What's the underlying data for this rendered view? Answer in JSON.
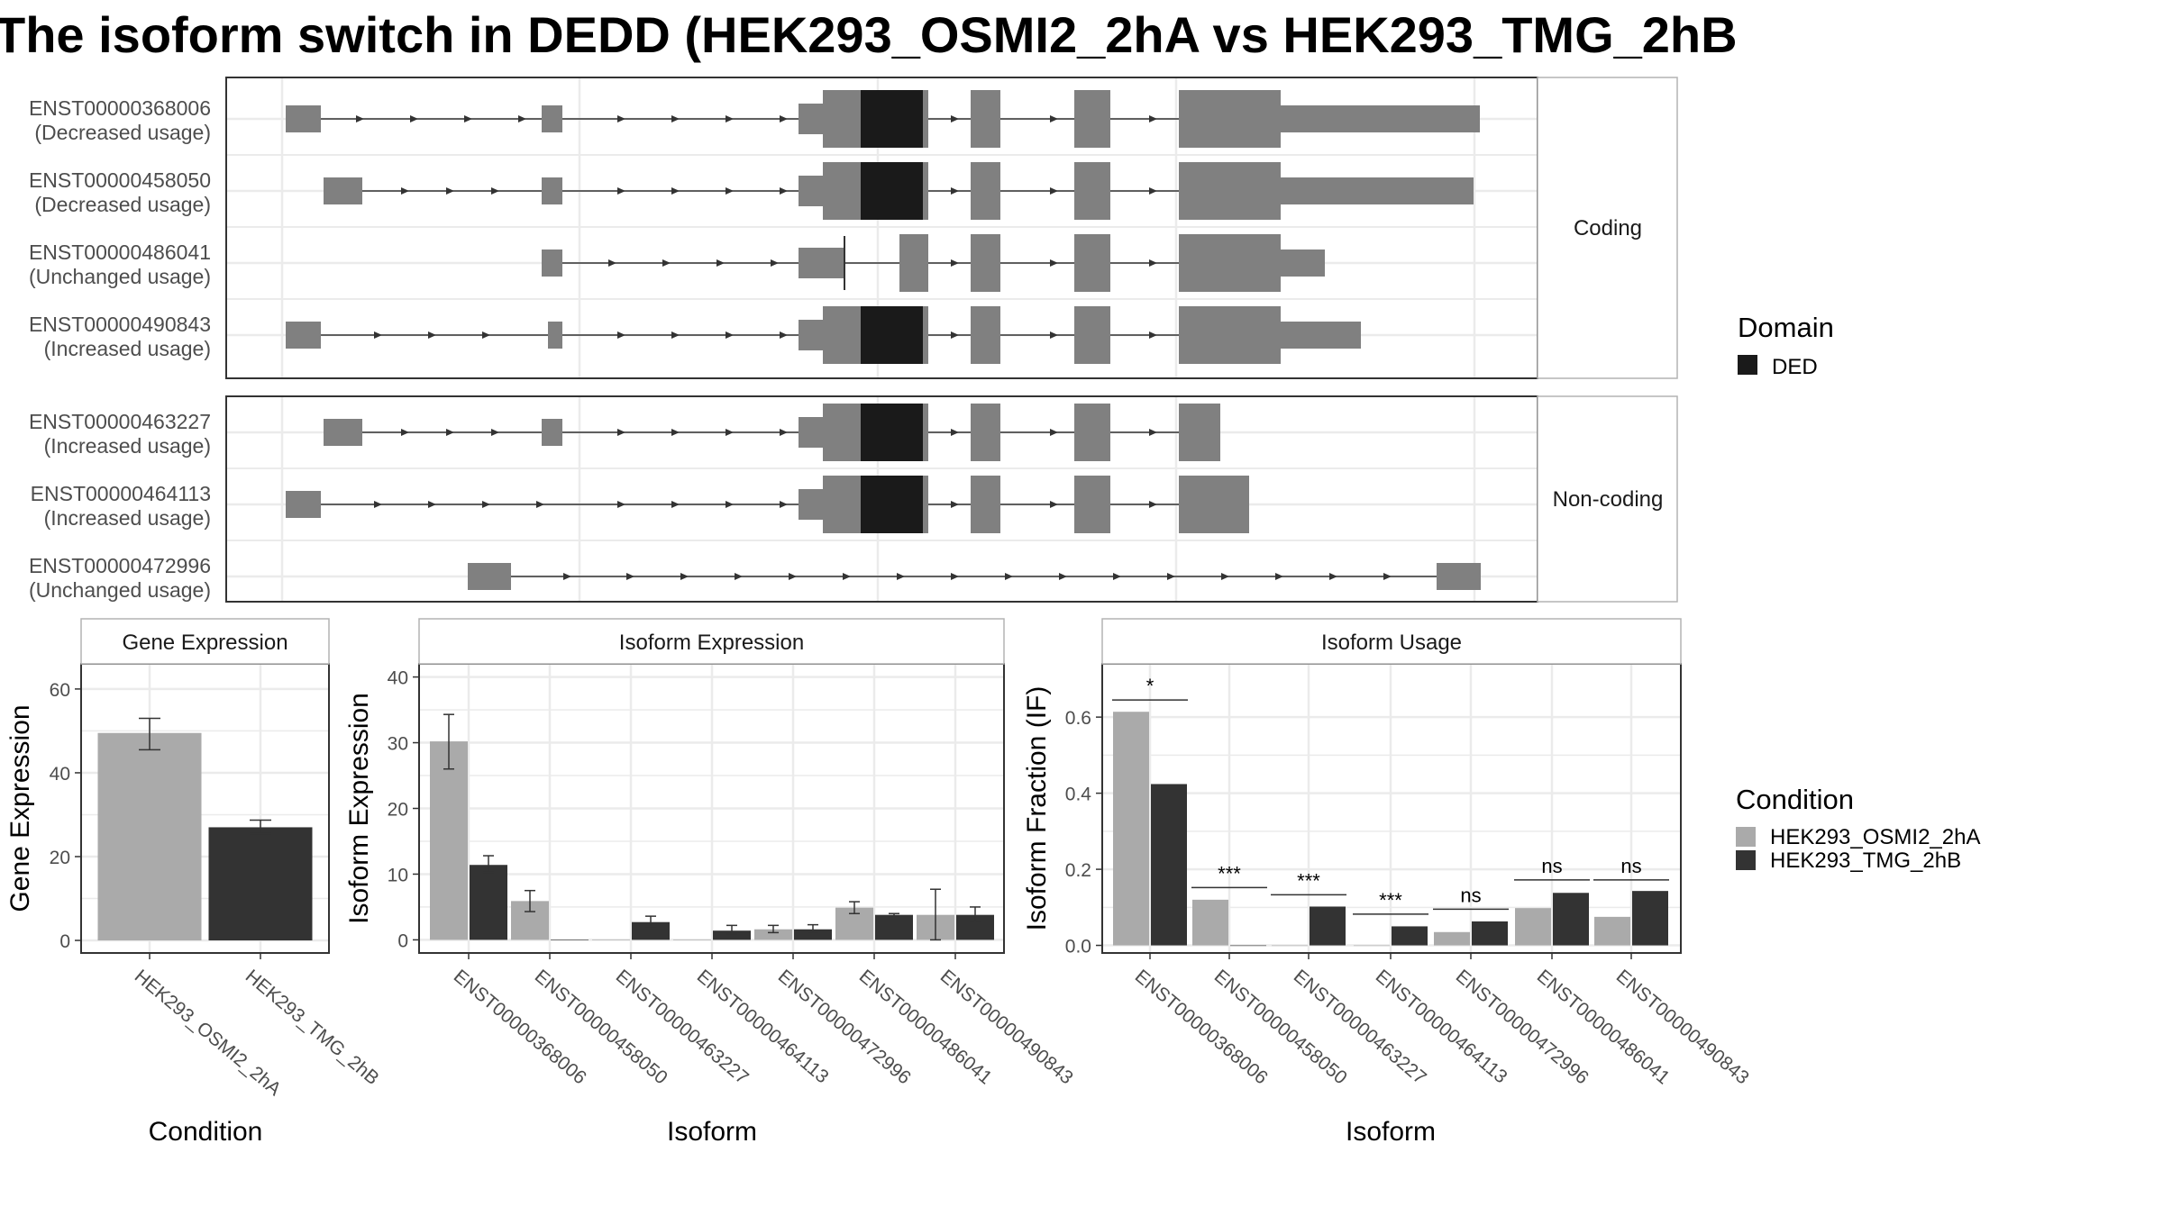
{
  "title": "The isoform switch in DEDD (HEK293_OSMI2_2hA vs HEK293_TMG_2hB",
  "colors": {
    "exon": "#808080",
    "domain": "#1a1a1a",
    "cond_a": "#aaaaaa",
    "cond_b": "#333333",
    "panel_border": "#333333",
    "strip_border": "#b3b3b3",
    "grid": "#ebebeb"
  },
  "transcript_panel": {
    "facets": [
      {
        "label": "Coding",
        "transcripts": [
          {
            "id": "ENST00000368006",
            "usage": "(Decreased usage)"
          },
          {
            "id": "ENST00000458050",
            "usage": "(Decreased usage)"
          },
          {
            "id": "ENST00000486041",
            "usage": "(Unchanged usage)"
          },
          {
            "id": "ENST00000490843",
            "usage": "(Increased usage)"
          }
        ]
      },
      {
        "label": "Non-coding",
        "transcripts": [
          {
            "id": "ENST00000463227",
            "usage": "(Increased usage)"
          },
          {
            "id": "ENST00000464113",
            "usage": "(Increased usage)"
          },
          {
            "id": "ENST00000472996",
            "usage": "(Unchanged usage)"
          }
        ]
      }
    ]
  },
  "legends": {
    "domain": {
      "title": "Domain",
      "items": [
        {
          "label": "DED"
        }
      ]
    },
    "condition": {
      "title": "Condition",
      "items": [
        {
          "label": "HEK293_OSMI2_2hA"
        },
        {
          "label": "HEK293_TMG_2hB"
        }
      ]
    }
  },
  "chart_data": [
    {
      "type": "bar",
      "title": "Gene Expression",
      "xlabel": "Condition",
      "ylabel": "Gene Expression",
      "categories": [
        "HEK293_OSMI2_2hA",
        "HEK293_TMG_2hB"
      ],
      "values": [
        49.5,
        27
      ],
      "errors": [
        [
          45.5,
          53
        ],
        [
          25.5,
          28.7
        ]
      ],
      "ylim": [
        -3,
        66
      ],
      "yticks": [
        0,
        20,
        40,
        60
      ],
      "ytick_labels": [
        "0",
        "20",
        "40",
        "60"
      ]
    },
    {
      "type": "bar",
      "title": "Isoform Expression",
      "xlabel": "Isoform",
      "ylabel": "Isoform Expression",
      "categories": [
        "ENST00000368006",
        "ENST00000458050",
        "ENST00000463227",
        "ENST00000464113",
        "ENST00000472996",
        "ENST00000486041",
        "ENST00000490843"
      ],
      "series": [
        {
          "values": [
            30.2,
            5.9,
            0,
            0,
            1.6,
            4.9,
            3.8
          ],
          "errors": [
            [
              26,
              34.3
            ],
            [
              4.3,
              7.5
            ],
            [
              0,
              0
            ],
            [
              0,
              0
            ],
            [
              1.1,
              2.2
            ],
            [
              4,
              5.8
            ],
            [
              0,
              7.7
            ]
          ]
        },
        {
          "values": [
            11.4,
            0,
            2.7,
            1.4,
            1.6,
            3.8,
            3.8
          ],
          "errors": [
            [
              10.3,
              12.8
            ],
            [
              0,
              0
            ],
            [
              2,
              3.6
            ],
            [
              0.9,
              2.2
            ],
            [
              1,
              2.3
            ],
            [
              3.6,
              4
            ],
            [
              2.7,
              5
            ]
          ]
        }
      ],
      "ylim": [
        -2,
        42
      ],
      "yticks": [
        0,
        10,
        20,
        30,
        40
      ],
      "ytick_labels": [
        "0",
        "10",
        "20",
        "30",
        "40"
      ]
    },
    {
      "type": "bar",
      "title": "Isoform Usage",
      "xlabel": "Isoform",
      "ylabel": "Isoform Fraction (IF)",
      "categories": [
        "ENST00000368006",
        "ENST00000458050",
        "ENST00000463227",
        "ENST00000464113",
        "ENST00000472996",
        "ENST00000486041",
        "ENST00000490843"
      ],
      "series": [
        {
          "values": [
            0.614,
            0.12,
            0,
            0,
            0.035,
            0.098,
            0.075
          ]
        },
        {
          "values": [
            0.424,
            0,
            0.102,
            0.05,
            0.063,
            0.138,
            0.143
          ]
        }
      ],
      "significance": [
        "*",
        "***",
        "***",
        "***",
        "ns",
        "ns",
        "ns"
      ],
      "sig_y": [
        0.645,
        0.152,
        0.133,
        0.082,
        0.095,
        0.172,
        0.172
      ],
      "ylim": [
        -0.02,
        0.74
      ],
      "yticks": [
        0,
        0.2,
        0.4,
        0.6
      ],
      "ytick_labels": [
        "0.0",
        "0.2",
        "0.4",
        "0.6"
      ]
    }
  ]
}
